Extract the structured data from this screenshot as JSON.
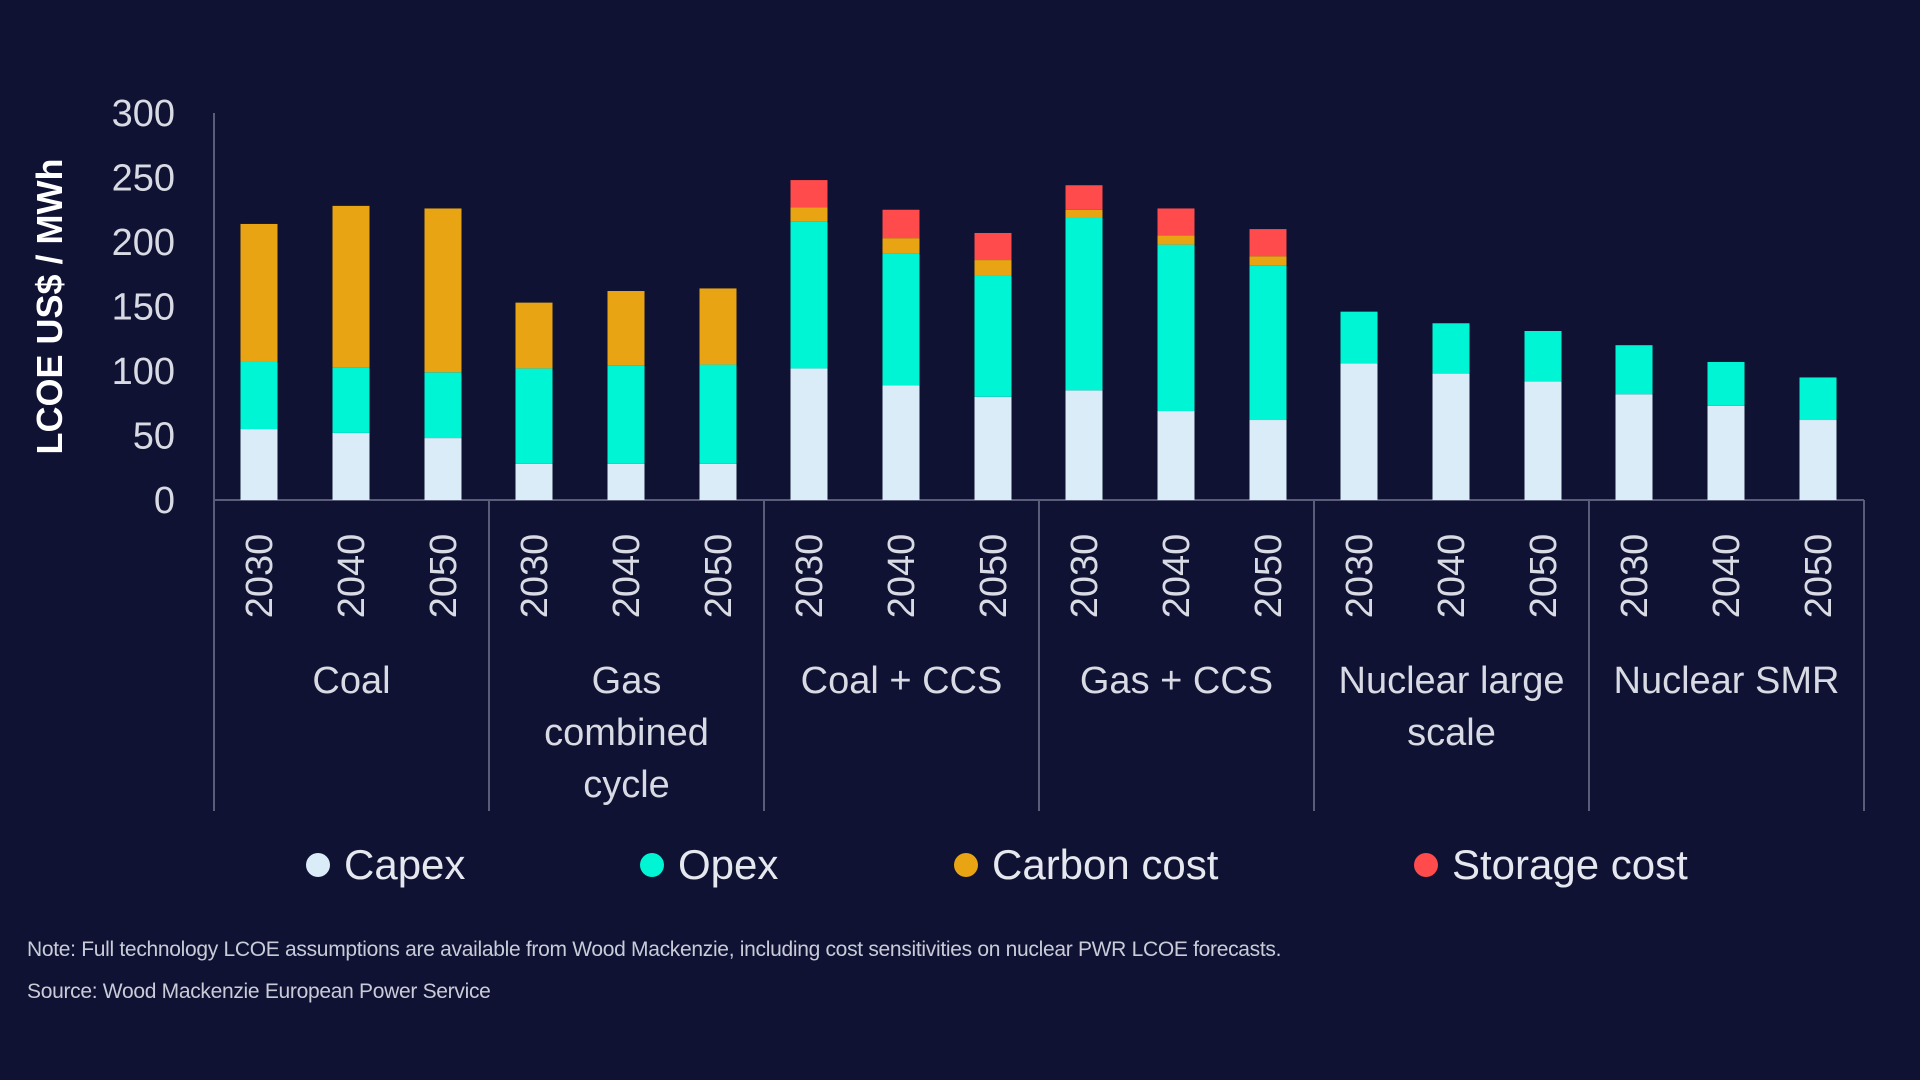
{
  "chart_data": {
    "type": "bar",
    "stacked": true,
    "ylabel": "LCOE US$ / MWh",
    "ylim": [
      0,
      300
    ],
    "yticks": [
      0,
      50,
      100,
      150,
      200,
      250,
      300
    ],
    "grid": false,
    "legend_position": "bottom",
    "groups": [
      {
        "label": "Coal",
        "years": [
          "2030",
          "2040",
          "2050"
        ]
      },
      {
        "label": "Gas combined cycle",
        "years": [
          "2030",
          "2040",
          "2050"
        ]
      },
      {
        "label": "Coal + CCS",
        "years": [
          "2030",
          "2040",
          "2050"
        ]
      },
      {
        "label": "Gas + CCS",
        "years": [
          "2030",
          "2040",
          "2050"
        ]
      },
      {
        "label": "Nuclear large scale",
        "years": [
          "2030",
          "2040",
          "2050"
        ]
      },
      {
        "label": "Nuclear SMR",
        "years": [
          "2030",
          "2040",
          "2050"
        ]
      }
    ],
    "series": [
      {
        "name": "Capex",
        "color": "#d9ecf7",
        "values": [
          55,
          52,
          48,
          28,
          28,
          28,
          102,
          89,
          80,
          85,
          69,
          62,
          106,
          98,
          92,
          82,
          73,
          62
        ]
      },
      {
        "name": "Opex",
        "color": "#00f5d4",
        "values": [
          52,
          51,
          51,
          74,
          76,
          77,
          114,
          102,
          94,
          134,
          129,
          120,
          40,
          39,
          39,
          38,
          34,
          33
        ]
      },
      {
        "name": "Carbon cost",
        "color": "#e8a412",
        "values": [
          107,
          125,
          127,
          51,
          58,
          59,
          11,
          12,
          12,
          6,
          7,
          7,
          0,
          0,
          0,
          0,
          0,
          0
        ]
      },
      {
        "name": "Storage cost",
        "color": "#ff4b4b",
        "values": [
          0,
          0,
          0,
          0,
          0,
          0,
          21,
          22,
          21,
          19,
          21,
          21,
          0,
          0,
          0,
          0,
          0,
          0
        ]
      }
    ]
  },
  "footer": {
    "note": "Note: Full technology LCOE assumptions are available from Wood Mackenzie, including cost sensitivities on nuclear PWR LCOE forecasts.",
    "source": "Source: Wood Mackenzie European Power Service"
  }
}
